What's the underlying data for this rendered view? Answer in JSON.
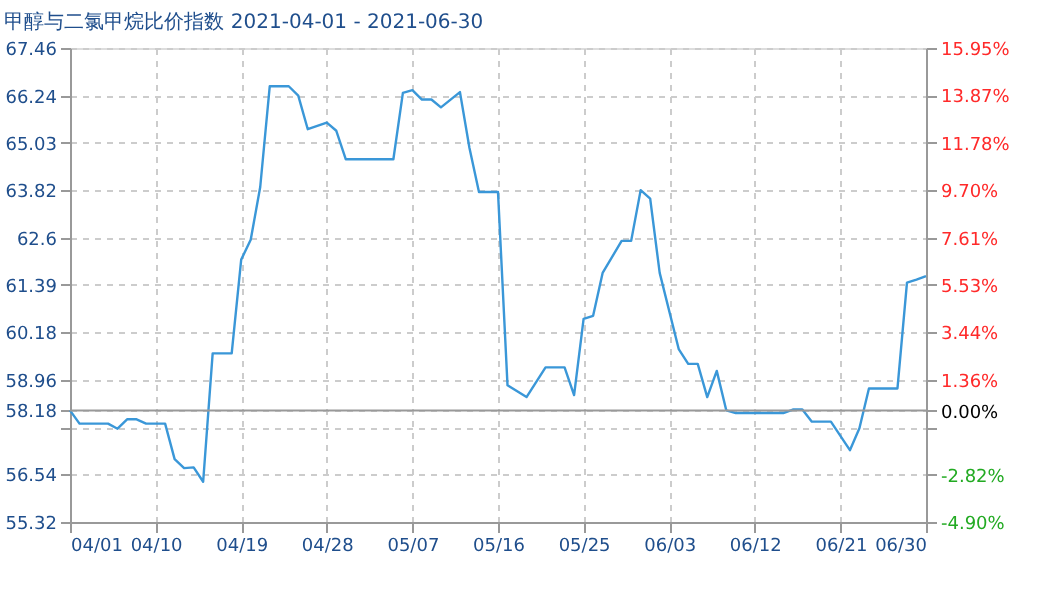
{
  "chart_data": {
    "type": "line",
    "title": "甲醇与二氯甲烷比价指数 2021-04-01 - 2021-06-30",
    "x": [
      "2021-04-01",
      "2021-04-02",
      "2021-04-05",
      "2021-04-06",
      "2021-04-07",
      "2021-04-08",
      "2021-04-09",
      "2021-04-11",
      "2021-04-12",
      "2021-04-13",
      "2021-04-14",
      "2021-04-15",
      "2021-04-16",
      "2021-04-18",
      "2021-04-19",
      "2021-04-20",
      "2021-04-21",
      "2021-04-22",
      "2021-04-24",
      "2021-04-25",
      "2021-04-26",
      "2021-04-28",
      "2021-04-29",
      "2021-04-30",
      "2021-05-05",
      "2021-05-06",
      "2021-05-07",
      "2021-05-08",
      "2021-05-09",
      "2021-05-10",
      "2021-05-12",
      "2021-05-13",
      "2021-05-14",
      "2021-05-16",
      "2021-05-17",
      "2021-05-19",
      "2021-05-21",
      "2021-05-23",
      "2021-05-24",
      "2021-05-25",
      "2021-05-26",
      "2021-05-27",
      "2021-05-29",
      "2021-05-30",
      "2021-05-31",
      "2021-06-01",
      "2021-06-02",
      "2021-06-04",
      "2021-06-05",
      "2021-06-06",
      "2021-06-07",
      "2021-06-08",
      "2021-06-09",
      "2021-06-10",
      "2021-06-15",
      "2021-06-16",
      "2021-06-17",
      "2021-06-18",
      "2021-06-20",
      "2021-06-22",
      "2021-06-23",
      "2021-06-24",
      "2021-06-27",
      "2021-06-28",
      "2021-06-29",
      "2021-06-30"
    ],
    "series": [
      {
        "color": "#3a97d8",
        "values": [
          58.18,
          57.84,
          57.84,
          57.71,
          57.95,
          57.95,
          57.84,
          57.84,
          56.93,
          56.7,
          56.72,
          56.35,
          59.64,
          59.64,
          62.04,
          62.55,
          63.9,
          66.48,
          66.48,
          66.24,
          65.38,
          65.55,
          65.34,
          64.61,
          64.61,
          66.31,
          66.38,
          66.14,
          66.14,
          65.94,
          66.33,
          64.9,
          63.77,
          63.77,
          58.82,
          58.52,
          59.28,
          59.28,
          58.57,
          60.52,
          60.6,
          61.7,
          62.52,
          62.52,
          63.82,
          63.6,
          61.7,
          59.75,
          59.37,
          59.37,
          58.52,
          59.19,
          58.18,
          58.11,
          58.11,
          58.2,
          58.2,
          57.89,
          57.89,
          57.16,
          57.72,
          58.74,
          58.74,
          61.45,
          61.53,
          61.62
        ]
      }
    ],
    "xlim": [
      "2021-04-01",
      "2021-06-30"
    ],
    "xticks": [
      {
        "value": "2021-04-01",
        "label": "04/01"
      },
      {
        "value": "2021-04-10",
        "label": "04/10"
      },
      {
        "value": "2021-04-19",
        "label": "04/19"
      },
      {
        "value": "2021-04-28",
        "label": "04/28"
      },
      {
        "value": "2021-05-07",
        "label": "05/07"
      },
      {
        "value": "2021-05-16",
        "label": "05/16"
      },
      {
        "value": "2021-05-25",
        "label": "05/25"
      },
      {
        "value": "2021-06-03",
        "label": "06/03"
      },
      {
        "value": "2021-06-12",
        "label": "06/12"
      },
      {
        "value": "2021-06-21",
        "label": "06/21"
      },
      {
        "value": "2021-06-30",
        "label": "06/30"
      }
    ],
    "ylim": [
      55.32,
      67.46
    ],
    "yticks": [
      55.32,
      56.54,
      {
        "value": 57.75,
        "label": null
      },
      58.18,
      58.96,
      60.18,
      61.39,
      62.6,
      63.82,
      65.03,
      66.24,
      67.46
    ],
    "y2lim": [
      -4.9,
      15.95
    ],
    "y2ticks": [
      {
        "value": -4.9,
        "label": "-4.90%"
      },
      {
        "value": -2.82,
        "label": "-2.82%"
      },
      {
        "value": -0.74,
        "label": null
      },
      {
        "value": 0,
        "label": "0.00%"
      },
      {
        "value": 1.36,
        "label": "1.36%"
      },
      {
        "value": 3.44,
        "label": "3.44%"
      },
      {
        "value": 5.53,
        "label": "5.53%"
      },
      {
        "value": 7.61,
        "label": "7.61%"
      },
      {
        "value": 9.7,
        "label": "9.70%"
      },
      {
        "value": 11.78,
        "label": "11.78%"
      },
      {
        "value": 13.87,
        "label": "13.87%"
      },
      {
        "value": 15.95,
        "label": "15.95%"
      }
    ],
    "ref_lines": [
      {
        "axis": "y2",
        "value": 0,
        "color": "#999999"
      }
    ],
    "grid": true,
    "marker": "none",
    "line_style": "solid"
  }
}
